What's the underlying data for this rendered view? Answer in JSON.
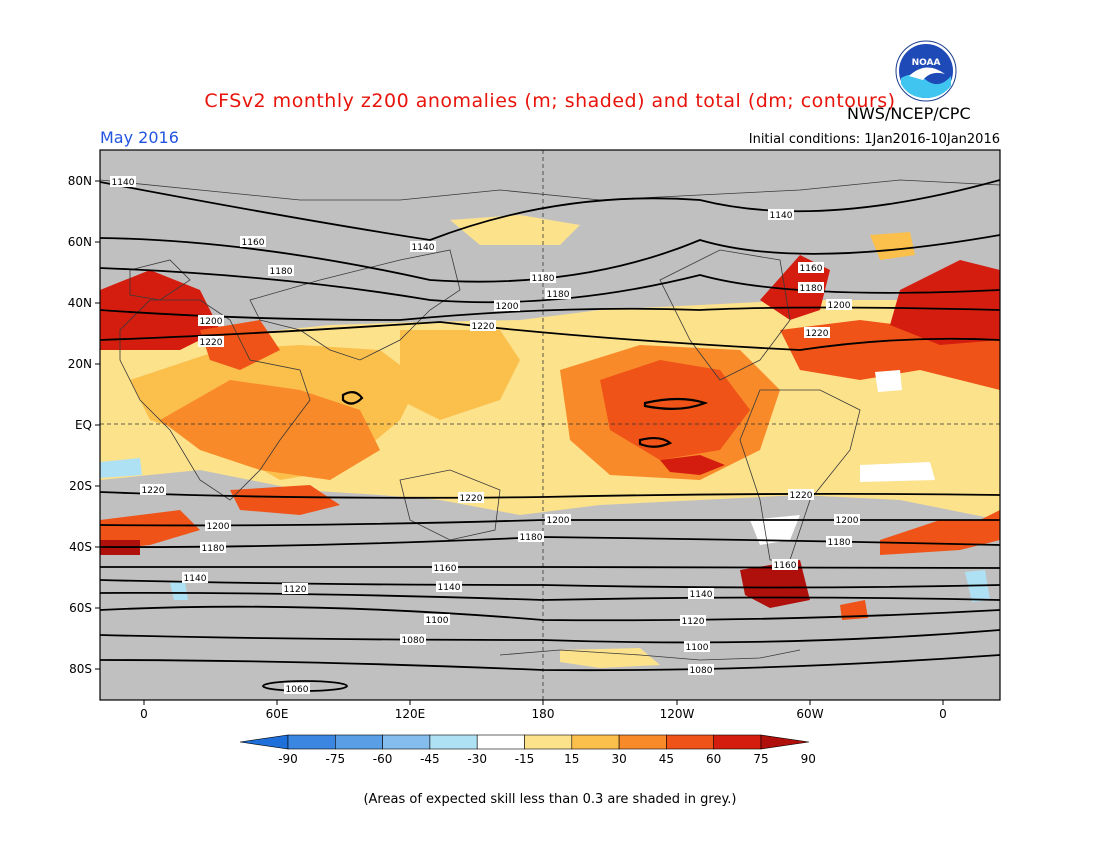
{
  "header": {
    "title": "CFSv2 monthly z200 anomalies (m; shaded) and total (dm; contours)",
    "month": "May 2016",
    "org": "NWS/NCEP/CPC",
    "initial_conditions": "Initial conditions: 1Jan2016-10Jan2016",
    "logo_text": "NOAA"
  },
  "map": {
    "lat_labels": [
      "80N",
      "60N",
      "40N",
      "20N",
      "EQ",
      "20S",
      "40S",
      "60S",
      "80S"
    ],
    "lon_labels": [
      "0",
      "60E",
      "120E",
      "180",
      "120W",
      "60W",
      "0"
    ],
    "contour_labels": [
      "1140",
      "1160",
      "1180",
      "1200",
      "1220",
      "1100",
      "1080",
      "1060",
      "1120"
    ]
  },
  "colorbar": {
    "ticks": [
      "-90",
      "-75",
      "-60",
      "-45",
      "-30",
      "-15",
      "15",
      "30",
      "45",
      "60",
      "75",
      "90"
    ],
    "colors": [
      "#1e6fd9",
      "#3a86e0",
      "#5a9fe6",
      "#84bdee",
      "#aee1f3",
      "#ffffff",
      "#fde28c",
      "#fbbf4c",
      "#f98a2a",
      "#ef5317",
      "#d41d0f",
      "#b0100c"
    ]
  },
  "footer": {
    "note": "(Areas of expected skill less than 0.3 are shaded in grey.)"
  }
}
